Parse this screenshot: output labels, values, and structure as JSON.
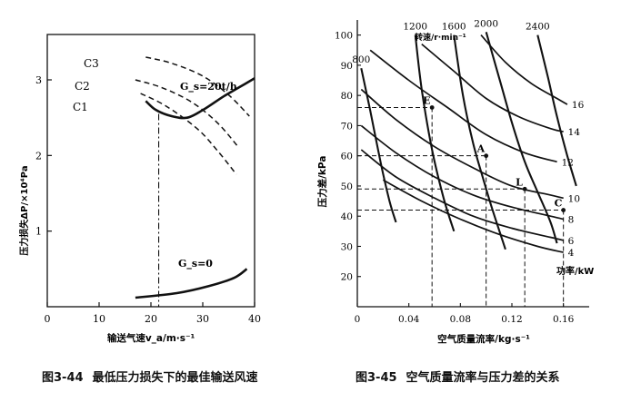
{
  "figures": [
    {
      "number": "图3-44",
      "caption": "最低压力损失下的最佳输送风速"
    },
    {
      "number": "图3-45",
      "caption": "空气质量流率与压力差的关系"
    }
  ],
  "chart_data": [
    {
      "type": "line",
      "title": "",
      "xlabel": "输送气速v_a/m·s⁻¹",
      "ylabel": "压力损失ΔP/×10⁴Pa",
      "xlim": [
        0,
        40
      ],
      "ylim": [
        0,
        3.6
      ],
      "x_ticks": [
        0,
        10,
        20,
        30,
        40
      ],
      "y_ticks": [
        1,
        2,
        3
      ],
      "grid": false,
      "vertical_line_x": 21.5,
      "series": [
        {
          "name": "C3",
          "style": "dashed",
          "points": [
            [
              19,
              3.3
            ],
            [
              24,
              3.22
            ],
            [
              30,
              3.05
            ],
            [
              35,
              2.8
            ],
            [
              39,
              2.52
            ]
          ]
        },
        {
          "name": "C2",
          "style": "dashed",
          "points": [
            [
              17,
              3.0
            ],
            [
              22,
              2.9
            ],
            [
              28,
              2.7
            ],
            [
              33,
              2.42
            ],
            [
              37,
              2.1
            ]
          ]
        },
        {
          "name": "C1",
          "style": "dashed",
          "points": [
            [
              18,
              2.82
            ],
            [
              23,
              2.65
            ],
            [
              29,
              2.35
            ],
            [
              33,
              2.05
            ],
            [
              36.5,
              1.75
            ]
          ]
        },
        {
          "name": "G_s=20t/h",
          "style": "solid",
          "points": [
            [
              19,
              2.72
            ],
            [
              21,
              2.6
            ],
            [
              24,
              2.52
            ],
            [
              27,
              2.5
            ],
            [
              30,
              2.6
            ],
            [
              34,
              2.78
            ],
            [
              37,
              2.9
            ],
            [
              40,
              3.02
            ]
          ]
        },
        {
          "name": "G_s=0",
          "style": "solid",
          "points": [
            [
              17,
              0.12
            ],
            [
              25,
              0.18
            ],
            [
              31,
              0.27
            ],
            [
              36,
              0.38
            ],
            [
              38.5,
              0.5
            ]
          ]
        }
      ]
    },
    {
      "type": "line",
      "title": "",
      "xlabel": "空气质量流率/kg·s⁻¹",
      "ylabel": "压力差/kPa",
      "xlim": [
        0,
        0.18
      ],
      "ylim": [
        10,
        105
      ],
      "x_ticks": [
        0,
        0.04,
        0.08,
        0.12,
        0.16
      ],
      "y_ticks": [
        20,
        30,
        40,
        50,
        60,
        70,
        80,
        90,
        100
      ],
      "grid": false,
      "speed_legend": "转速/r·min⁻¹",
      "speed_curves": [
        {
          "name": "800",
          "points": [
            [
              0.003,
              89
            ],
            [
              0.01,
              75
            ],
            [
              0.018,
              58
            ],
            [
              0.025,
              45
            ],
            [
              0.03,
              38
            ]
          ]
        },
        {
          "name": "1200",
          "points": [
            [
              0.045,
              100
            ],
            [
              0.05,
              82
            ],
            [
              0.058,
              62
            ],
            [
              0.067,
              46
            ],
            [
              0.075,
              35
            ]
          ]
        },
        {
          "name": "1600",
          "points": [
            [
              0.075,
              100
            ],
            [
              0.082,
              80
            ],
            [
              0.09,
              64
            ],
            [
              0.098,
              52
            ],
            [
              0.105,
              42
            ],
            [
              0.115,
              29
            ]
          ]
        },
        {
          "name": "2000",
          "points": [
            [
              0.1,
              101
            ],
            [
              0.11,
              86
            ],
            [
              0.12,
              71
            ],
            [
              0.13,
              58
            ],
            [
              0.14,
              48
            ],
            [
              0.15,
              38
            ],
            [
              0.155,
              31
            ]
          ]
        },
        {
          "name": "2400",
          "points": [
            [
              0.14,
              100
            ],
            [
              0.148,
              86
            ],
            [
              0.155,
              73
            ],
            [
              0.163,
              60
            ],
            [
              0.17,
              50
            ]
          ]
        }
      ],
      "power_unit_label": "功率/kW",
      "power_curves": [
        {
          "name": "16",
          "points": [
            [
              0.096,
              100
            ],
            [
              0.115,
              91
            ],
            [
              0.135,
              84
            ],
            [
              0.155,
              79
            ],
            [
              0.163,
              77
            ]
          ]
        },
        {
          "name": "14",
          "points": [
            [
              0.05,
              97
            ],
            [
              0.075,
              88
            ],
            [
              0.1,
              79
            ],
            [
              0.125,
              73
            ],
            [
              0.15,
              69
            ],
            [
              0.16,
              68
            ]
          ]
        },
        {
          "name": "12",
          "points": [
            [
              0.01,
              95
            ],
            [
              0.04,
              85
            ],
            [
              0.07,
              76
            ],
            [
              0.1,
              67
            ],
            [
              0.13,
              61
            ],
            [
              0.155,
              58
            ]
          ]
        },
        {
          "name": "10",
          "points": [
            [
              0.003,
              82
            ],
            [
              0.03,
              72
            ],
            [
              0.06,
              63
            ],
            [
              0.09,
              56
            ],
            [
              0.12,
              50
            ],
            [
              0.15,
              47
            ],
            [
              0.16,
              46
            ]
          ]
        },
        {
          "name": "8",
          "points": [
            [
              0.003,
              70
            ],
            [
              0.03,
              61
            ],
            [
              0.06,
              53
            ],
            [
              0.09,
              47
            ],
            [
              0.12,
              43
            ],
            [
              0.15,
              40
            ],
            [
              0.16,
              39
            ]
          ]
        },
        {
          "name": "6",
          "points": [
            [
              0.003,
              62
            ],
            [
              0.03,
              53
            ],
            [
              0.06,
              46
            ],
            [
              0.09,
              40
            ],
            [
              0.12,
              36
            ],
            [
              0.15,
              33
            ],
            [
              0.16,
              32
            ]
          ]
        },
        {
          "name": "4",
          "points": [
            [
              0.02,
              52
            ],
            [
              0.05,
              45
            ],
            [
              0.08,
              39
            ],
            [
              0.11,
              34
            ],
            [
              0.14,
              30
            ],
            [
              0.16,
              28
            ]
          ]
        }
      ],
      "marked_points": [
        {
          "label": "E",
          "x": 0.058,
          "y": 76
        },
        {
          "label": "A",
          "x": 0.1,
          "y": 60
        },
        {
          "label": "L",
          "x": 0.13,
          "y": 49
        },
        {
          "label": "C",
          "x": 0.16,
          "y": 42
        }
      ]
    }
  ],
  "labels": {
    "c3": "C3",
    "c2": "C2",
    "c1": "C1",
    "gs20": "G_s=20t/h",
    "gs0": "G_s=0"
  }
}
